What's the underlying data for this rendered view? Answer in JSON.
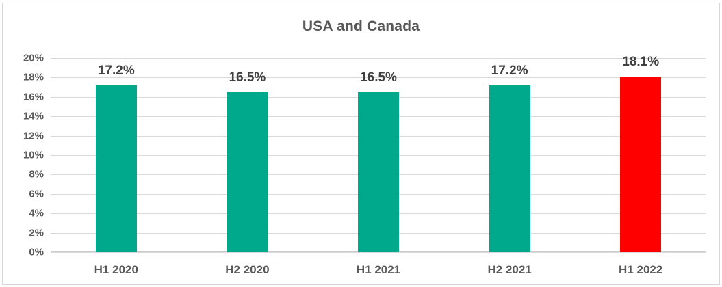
{
  "chart_data": {
    "type": "bar",
    "title": "USA and Canada",
    "categories": [
      "H1 2020",
      "H2 2020",
      "H1 2021",
      "H2 2021",
      "H1 2022"
    ],
    "values": [
      17.2,
      16.5,
      16.5,
      17.2,
      18.1
    ],
    "data_labels": [
      "17.2%",
      "16.5%",
      "16.5%",
      "17.2%",
      "18.1%"
    ],
    "bar_colors": [
      "#00A88C",
      "#00A88C",
      "#00A88C",
      "#00A88C",
      "#FF0000"
    ],
    "xlabel": "",
    "ylabel": "",
    "ylim": [
      0,
      20
    ],
    "y_tick_step": 2,
    "y_tick_labels": [
      "0%",
      "2%",
      "4%",
      "6%",
      "8%",
      "10%",
      "12%",
      "14%",
      "16%",
      "18%",
      "20%"
    ],
    "grid": true,
    "legend_position": "none"
  },
  "colors": {
    "bar_teal": "#00A88C",
    "bar_red": "#FF0000",
    "title_text": "#595959",
    "axis_text": "#595959",
    "data_label_text": "#404040",
    "gridline": "#D9D9D9",
    "axis_line": "#CCCCCC",
    "chart_border": "#D6D6D6",
    "background": "#FFFFFF"
  }
}
